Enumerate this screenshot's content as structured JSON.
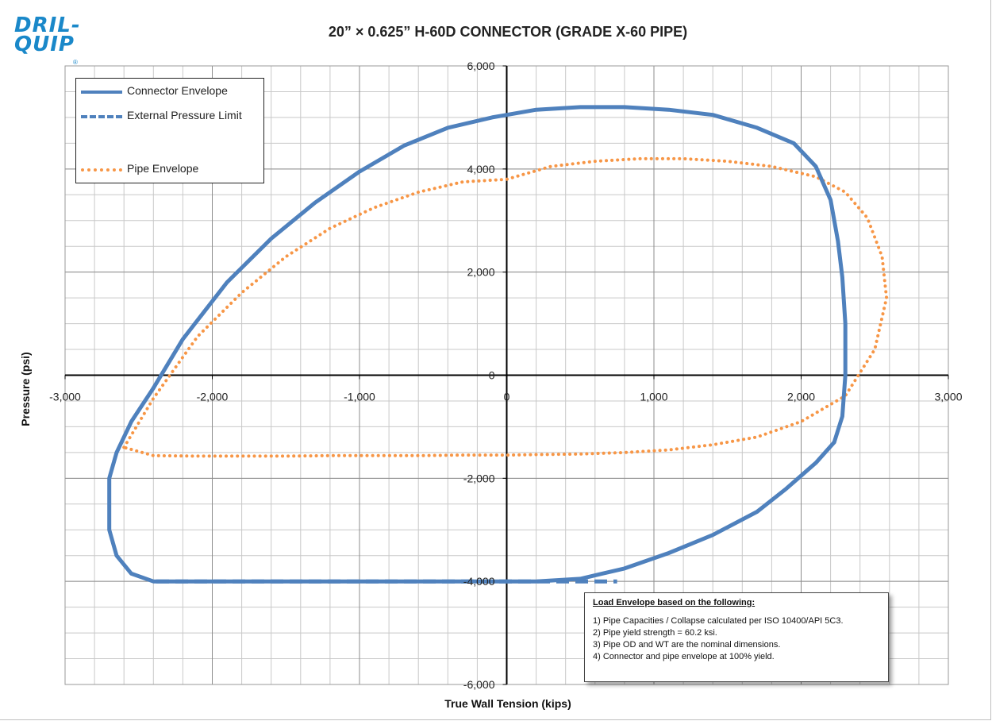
{
  "logo": {
    "text": "DRIL-\nQUIP",
    "mark": "®"
  },
  "chart_data": {
    "type": "line",
    "title": "20” × 0.625” H-60D CONNECTOR (GRADE X-60 PIPE)",
    "xlabel": "True Wall Tension (kips)",
    "ylabel": "Pressure (psi)",
    "xlim": [
      -3000,
      3000
    ],
    "ylim": [
      -6000,
      6000
    ],
    "x_ticks": [
      -3000,
      -2000,
      -1000,
      0,
      1000,
      2000,
      3000
    ],
    "x_tick_labels": [
      "-3,000",
      "-2,000",
      "-1,000",
      "0",
      "1,000",
      "2,000",
      "3,000"
    ],
    "y_ticks": [
      6000,
      4000,
      2000,
      0,
      -2000,
      -4000,
      -6000
    ],
    "y_tick_labels": [
      "6,000",
      "4,000",
      "2,000",
      "0",
      "-2,000",
      "-4,000",
      "-6,000"
    ],
    "grid": true,
    "legend_position": "top-left",
    "series": [
      {
        "name": "Connector Envelope",
        "style": "solid",
        "color": "#4f81bd",
        "x": [
          2225,
          2100,
          1900,
          1700,
          1400,
          1100,
          800,
          500,
          200,
          0,
          -200,
          -500,
          -800,
          -1100,
          -1400,
          -1700,
          -2000,
          -2200,
          -2400,
          -2550,
          -2650,
          -2700,
          -2700,
          -2650,
          -2550,
          -2400
        ],
        "y": [
          -1300,
          -1700,
          -2200,
          -2650,
          -3100,
          -3450,
          -3750,
          -3950,
          -4000,
          -4000,
          -4000,
          -4000,
          -4000,
          -4000,
          -4000,
          -4000,
          -4000,
          -4000,
          -4000,
          -3850,
          -3500,
          -3000,
          -2000,
          -1500,
          -900,
          -250
        ]
      },
      {
        "name": "External Pressure Limit",
        "style": "dashed",
        "color": "#4f81bd",
        "x": [
          -2380,
          750
        ],
        "y": [
          -4000,
          -4000
        ]
      },
      {
        "name": "Pipe Envelope",
        "style": "dotted",
        "color": "#f79646",
        "x": [
          -2600,
          -2400,
          -2100,
          -1800,
          -1500,
          -1200,
          -900,
          -600,
          -300,
          0,
          300,
          600,
          900,
          1200,
          1500,
          1800,
          2100,
          2300,
          2450,
          2550,
          2580,
          2500,
          2300,
          2000,
          1700,
          1400,
          1100,
          800,
          500,
          200,
          0,
          -300,
          -600,
          -900,
          -1200,
          -1500,
          -1800,
          -2100,
          -2400,
          -2600
        ],
        "y": [
          -1400,
          -450,
          750,
          1600,
          2300,
          2850,
          3250,
          3550,
          3750,
          3800,
          4050,
          4150,
          4200,
          4200,
          4150,
          4050,
          3850,
          3550,
          3050,
          2300,
          1500,
          500,
          -400,
          -900,
          -1200,
          -1350,
          -1450,
          -1500,
          -1530,
          -1540,
          -1550,
          -1550,
          -1560,
          -1560,
          -1560,
          -1570,
          -1570,
          -1570,
          -1560,
          -1400
        ]
      },
      {
        "name": "",
        "style": "solid",
        "color": "#4f81bd",
        "x": [
          -2400,
          -2200,
          -1900,
          -1600,
          -1300,
          -1000,
          -700,
          -400,
          -100,
          0,
          200,
          500,
          800,
          1100,
          1400,
          1700,
          1950,
          2100,
          2200,
          2250,
          2280,
          2300,
          2300,
          2280,
          2225
        ],
        "y": [
          -250,
          700,
          1800,
          2650,
          3350,
          3950,
          4450,
          4800,
          5000,
          5050,
          5150,
          5200,
          5200,
          5150,
          5050,
          4800,
          4500,
          4050,
          3400,
          2600,
          1900,
          1000,
          0,
          -800,
          -1300
        ]
      }
    ]
  },
  "legend": {
    "items": [
      {
        "label": "Connector Envelope",
        "style": "solid",
        "color": "#4f81bd"
      },
      {
        "label": "External Pressure Limit",
        "style": "dashed",
        "color": "#4f81bd"
      },
      {
        "label": "Pipe Envelope",
        "style": "dotted",
        "color": "#f79646"
      }
    ]
  },
  "notes": {
    "title": "Load Envelope based on the following:",
    "lines": [
      "1) Pipe Capacities / Collapse calculated per ISO 10400/API 5C3.",
      "2) Pipe yield strength = 60.2 ksi.",
      "3) Pipe OD and WT are the nominal dimensions.",
      "4) Connector and pipe envelope at 100% yield."
    ]
  }
}
